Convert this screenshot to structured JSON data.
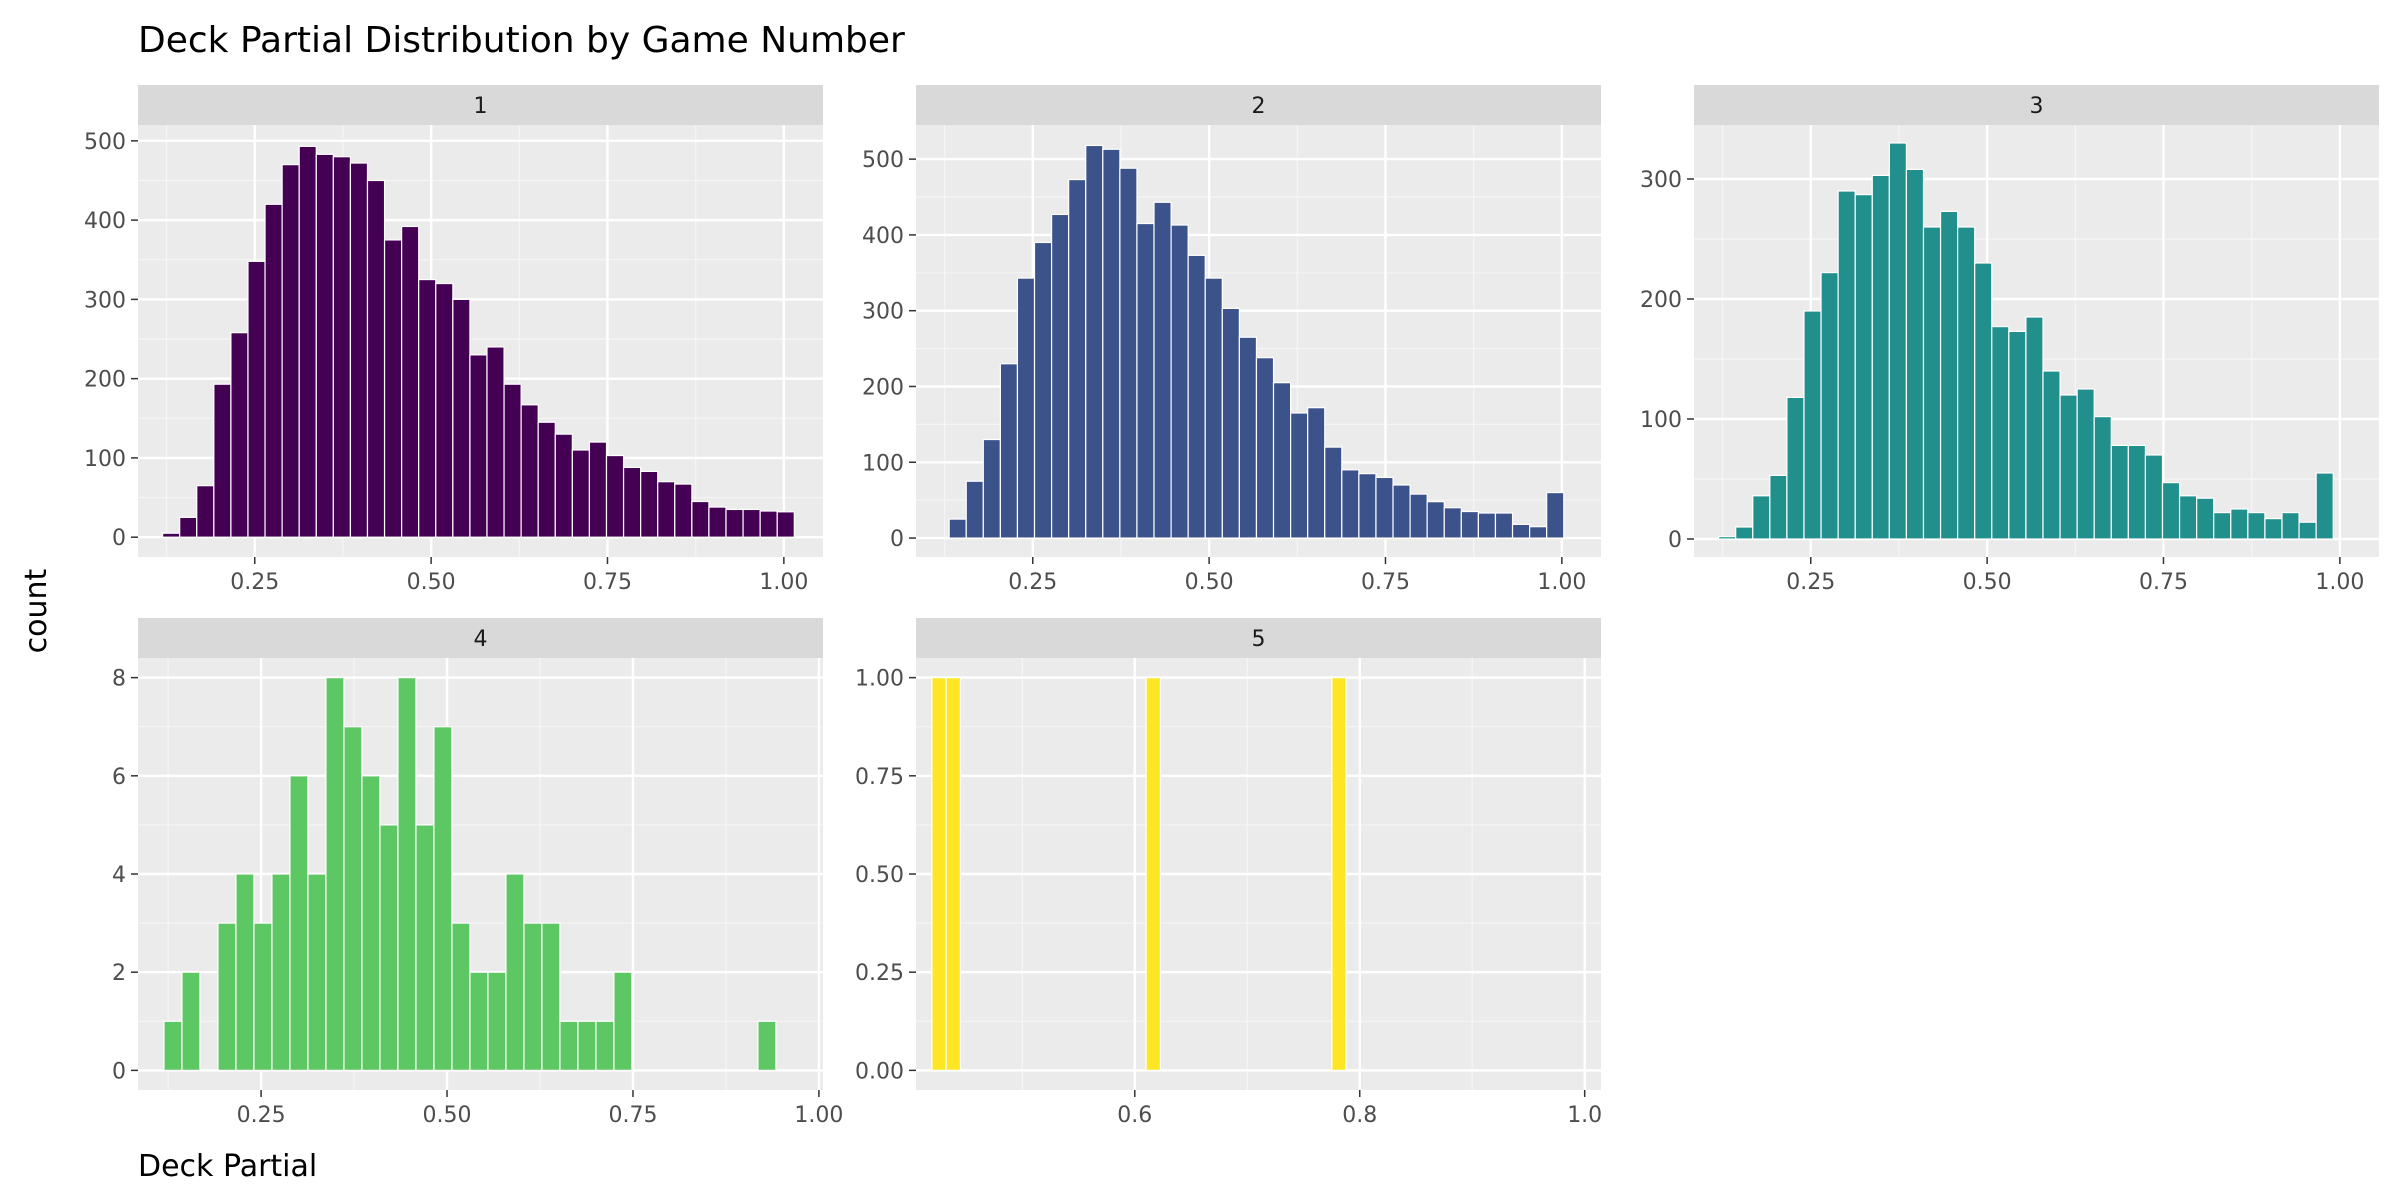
{
  "chart_data": {
    "type": "bar",
    "title": "Deck Partial Distribution by Game Number",
    "xlabel": "Deck Partial",
    "ylabel": "count",
    "grid": true,
    "legend": "none",
    "panels": [
      {
        "strip": "1",
        "color": "#440154",
        "bin_width": 0.0242,
        "x_start": 0.1194,
        "xlim": [
          0.0845,
          1.0555
        ],
        "xticks": [
          0.25,
          0.5,
          0.75,
          1.0
        ],
        "xtick_labels": [
          "0.25",
          "0.50",
          "0.75",
          "1.00"
        ],
        "ylim": [
          -25,
          520
        ],
        "yticks": [
          0,
          100,
          200,
          300,
          400,
          500
        ],
        "ytick_labels": [
          "0",
          "100",
          "200",
          "300",
          "400",
          "500"
        ],
        "values": [
          5,
          25,
          65,
          193,
          258,
          348,
          420,
          470,
          493,
          483,
          480,
          472,
          450,
          375,
          392,
          325,
          320,
          300,
          230,
          240,
          193,
          167,
          145,
          130,
          110,
          120,
          103,
          88,
          83,
          70,
          67,
          45,
          38,
          35,
          35,
          33,
          32
        ]
      },
      {
        "strip": "2",
        "color": "#3b528b",
        "bin_width": 0.0242,
        "x_start": 0.1315,
        "xlim": [
          0.0845,
          1.0555
        ],
        "xticks": [
          0.25,
          0.5,
          0.75,
          1.0
        ],
        "xtick_labels": [
          "0.25",
          "0.50",
          "0.75",
          "1.00"
        ],
        "ylim": [
          -25,
          545
        ],
        "yticks": [
          0,
          100,
          200,
          300,
          400,
          500
        ],
        "ytick_labels": [
          "0",
          "100",
          "200",
          "300",
          "400",
          "500"
        ],
        "values": [
          25,
          75,
          130,
          230,
          343,
          390,
          427,
          473,
          518,
          513,
          488,
          415,
          443,
          413,
          373,
          343,
          303,
          265,
          238,
          205,
          165,
          172,
          120,
          90,
          85,
          80,
          70,
          58,
          48,
          40,
          35,
          33,
          33,
          18,
          15,
          60
        ]
      },
      {
        "strip": "3",
        "color": "#21908c",
        "bin_width": 0.0242,
        "x_start": 0.1194,
        "xlim": [
          0.0845,
          1.0555
        ],
        "xticks": [
          0.25,
          0.5,
          0.75,
          1.0
        ],
        "xtick_labels": [
          "0.25",
          "0.50",
          "0.75",
          "1.00"
        ],
        "ylim": [
          -15,
          345
        ],
        "yticks": [
          0,
          100,
          200,
          300
        ],
        "ytick_labels": [
          "0",
          "100",
          "200",
          "300"
        ],
        "values": [
          2,
          10,
          36,
          53,
          118,
          190,
          222,
          290,
          287,
          303,
          330,
          308,
          260,
          273,
          260,
          230,
          177,
          173,
          185,
          140,
          120,
          125,
          102,
          78,
          78,
          70,
          47,
          36,
          34,
          22,
          25,
          22,
          17,
          22,
          14,
          55
        ]
      },
      {
        "strip": "4",
        "color": "#5dc863",
        "bin_width": 0.0242,
        "x_start": 0.1194,
        "xlim": [
          0.0845,
          1.0055
        ],
        "xticks": [
          0.25,
          0.5,
          0.75,
          1.0
        ],
        "xtick_labels": [
          "0.25",
          "0.50",
          "0.75",
          "1.00"
        ],
        "ylim": [
          -0.4,
          8.4
        ],
        "yticks": [
          0,
          2,
          4,
          6,
          8
        ],
        "ytick_labels": [
          "0",
          "2",
          "4",
          "6",
          "8"
        ],
        "values": [
          1,
          2,
          0,
          3,
          4,
          3,
          4,
          6,
          4,
          8,
          7,
          6,
          5,
          8,
          5,
          7,
          3,
          2,
          2,
          4,
          3,
          3,
          1,
          1,
          1,
          2,
          0,
          0,
          0,
          0,
          0,
          0,
          0,
          1
        ]
      },
      {
        "strip": "5",
        "color": "#fde725",
        "bin_width": 0.0127,
        "x_start": 0.4196,
        "xlim": [
          0.4055,
          1.0145
        ],
        "xticks": [
          0.6,
          0.8,
          1.0
        ],
        "xtick_labels": [
          "0.6",
          "0.8",
          "1.0"
        ],
        "ylim": [
          -0.05,
          1.05
        ],
        "yticks": [
          0,
          0.25,
          0.5,
          0.75,
          1.0
        ],
        "ytick_labels": [
          "0.00",
          "0.25",
          "0.50",
          "0.75",
          "1.00"
        ],
        "values": [
          1,
          1,
          0,
          0,
          0,
          0,
          0,
          0,
          0,
          0,
          0,
          0,
          0,
          0,
          0,
          1,
          0,
          0,
          0,
          0,
          0,
          0,
          0,
          0,
          0,
          0,
          0,
          0,
          1
        ]
      }
    ]
  }
}
